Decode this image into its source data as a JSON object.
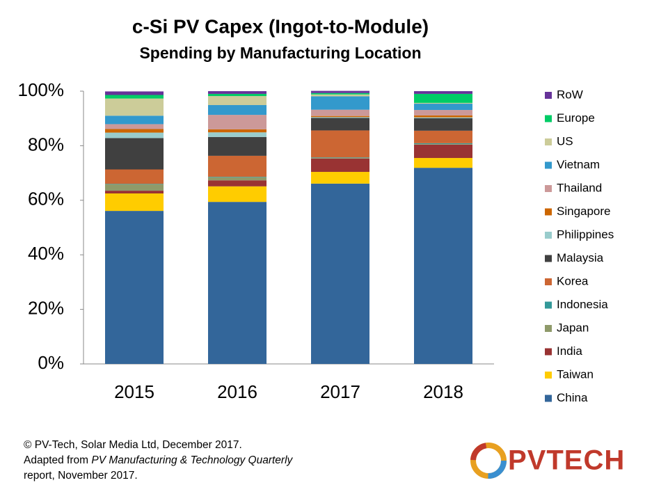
{
  "chart_data": {
    "type": "stacked_bar",
    "title": "c-Si PV Capex (Ingot-to-Module)",
    "subtitle": "Spending by Manufacturing Location",
    "categories": [
      "2015",
      "2016",
      "2017",
      "2018"
    ],
    "ylim": [
      0,
      100
    ],
    "yticks": [
      {
        "value": 0,
        "label": "0%"
      },
      {
        "value": 20,
        "label": "20%"
      },
      {
        "value": 40,
        "label": "40%"
      },
      {
        "value": 60,
        "label": "60%"
      },
      {
        "value": 80,
        "label": "80%"
      },
      {
        "value": 100,
        "label": "100%"
      }
    ],
    "grid": false,
    "legend": "right",
    "series": [
      {
        "name": "China",
        "color": "#33669a",
        "values": [
          56.1,
          59.4,
          66.1,
          71.9
        ]
      },
      {
        "name": "Taiwan",
        "color": "#ffcc00",
        "values": [
          6.4,
          5.7,
          4.3,
          3.6
        ]
      },
      {
        "name": "India",
        "color": "#993333",
        "values": [
          1.0,
          2.2,
          4.9,
          4.9
        ]
      },
      {
        "name": "Japan",
        "color": "#8f9a6a",
        "values": [
          2.3,
          1.1,
          0.2,
          0.2
        ]
      },
      {
        "name": "Indonesia",
        "color": "#339999",
        "values": [
          0.2,
          0.2,
          0.2,
          0.3
        ]
      },
      {
        "name": "Korea",
        "color": "#cc6633",
        "values": [
          5.3,
          7.7,
          9.9,
          4.6
        ]
      },
      {
        "name": "Malaysia",
        "color": "#404040",
        "values": [
          11.5,
          6.9,
          4.6,
          4.6
        ]
      },
      {
        "name": "Philippines",
        "color": "#99cccc",
        "values": [
          2.0,
          1.7,
          0.3,
          0.3
        ]
      },
      {
        "name": "Singapore",
        "color": "#cc6600",
        "values": [
          1.3,
          1.1,
          0.4,
          0.7
        ]
      },
      {
        "name": "Thailand",
        "color": "#cc9999",
        "values": [
          1.8,
          5.3,
          2.3,
          2.0
        ]
      },
      {
        "name": "Vietnam",
        "color": "#3399cc",
        "values": [
          3.1,
          3.6,
          4.9,
          2.3
        ]
      },
      {
        "name": "US",
        "color": "#cccc99",
        "values": [
          6.3,
          3.3,
          0.7,
          0.3
        ]
      },
      {
        "name": "Europe",
        "color": "#00cc66",
        "values": [
          1.3,
          0.8,
          0.5,
          3.3
        ]
      },
      {
        "name": "RoW",
        "color": "#663399",
        "values": [
          1.3,
          1.0,
          0.8,
          1.0
        ]
      }
    ]
  },
  "footer": {
    "line1": "© PV-Tech, Solar Media Ltd, December 2017.",
    "line2_prefix": "Adapted from ",
    "line2_italic": "PV Manufacturing & Technology Quarterly",
    "line3": "report, November 2017."
  },
  "logo": {
    "text": "PVTECH"
  }
}
